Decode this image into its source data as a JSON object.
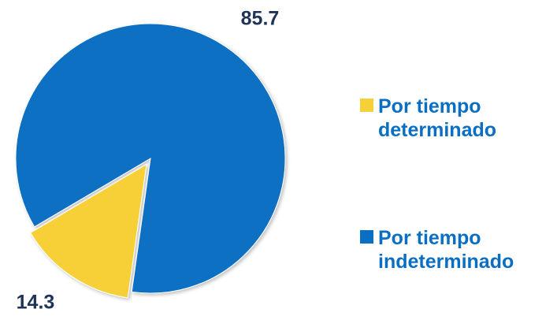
{
  "chart_data": {
    "type": "pie",
    "categories": [
      "Por tiempo determinado",
      "Por tiempo indeterminado"
    ],
    "values": [
      14.3,
      85.7
    ],
    "colors": [
      "#f7d038",
      "#0a6fc2"
    ],
    "legend": "right"
  }
}
